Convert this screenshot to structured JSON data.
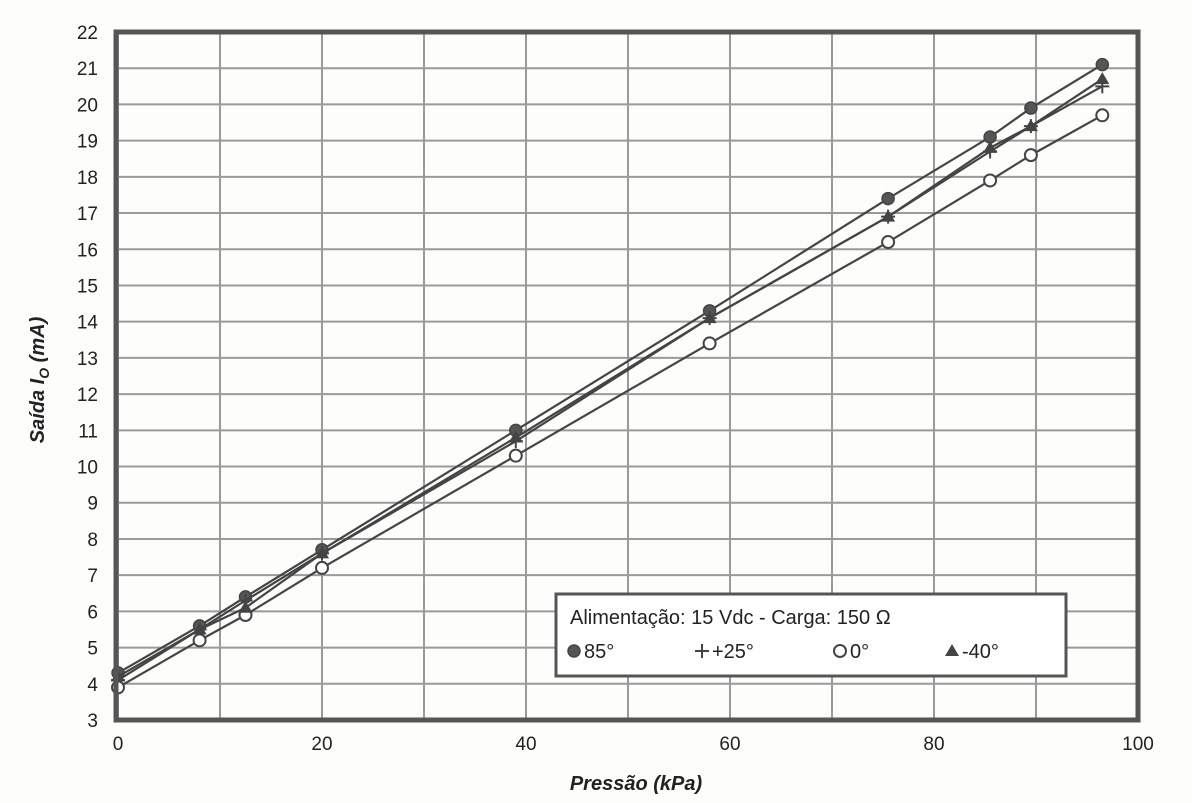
{
  "chart_data": {
    "type": "line",
    "title": "",
    "xlabel": "Pressão (kPa)",
    "ylabel": {
      "prefix": "Saída I",
      "sub": "O",
      "suffix": " (mA)"
    },
    "xlim": [
      0,
      100
    ],
    "ylim": [
      3,
      22
    ],
    "xticks": [
      0,
      20,
      40,
      60,
      80,
      100
    ],
    "yticks": [
      3,
      4,
      5,
      6,
      7,
      8,
      9,
      10,
      11,
      12,
      13,
      14,
      15,
      16,
      17,
      18,
      19,
      20,
      21,
      22
    ],
    "grid": true,
    "legend": {
      "placement": "bottom-right",
      "title": "Alimentação: 15 Vdc - Carga: 150 Ω"
    },
    "x": [
      0,
      8,
      12.5,
      20,
      39,
      58,
      75.5,
      85.5,
      89.5,
      96.5
    ],
    "series": [
      {
        "name": "85°",
        "marker": "filled-circle",
        "values": [
          4.3,
          5.6,
          6.4,
          7.7,
          11.0,
          14.3,
          17.4,
          19.1,
          19.9,
          21.1
        ]
      },
      {
        "name": "+25°",
        "marker": "plus",
        "values": [
          4.1,
          5.5,
          6.3,
          7.6,
          10.7,
          14.1,
          16.9,
          18.7,
          19.4,
          20.5
        ]
      },
      {
        "name": "0°",
        "marker": "open-circle",
        "values": [
          3.9,
          5.2,
          5.9,
          7.2,
          10.3,
          13.4,
          16.2,
          17.9,
          18.6,
          19.7
        ]
      },
      {
        "name": "-40°",
        "marker": "filled-triangle",
        "values": [
          4.2,
          5.5,
          6.1,
          7.6,
          10.8,
          14.1,
          16.9,
          18.8,
          19.4,
          20.7
        ]
      }
    ],
    "colors": {
      "line": "#444444",
      "grid": "#9a9a9a",
      "frame": "#555555"
    }
  }
}
